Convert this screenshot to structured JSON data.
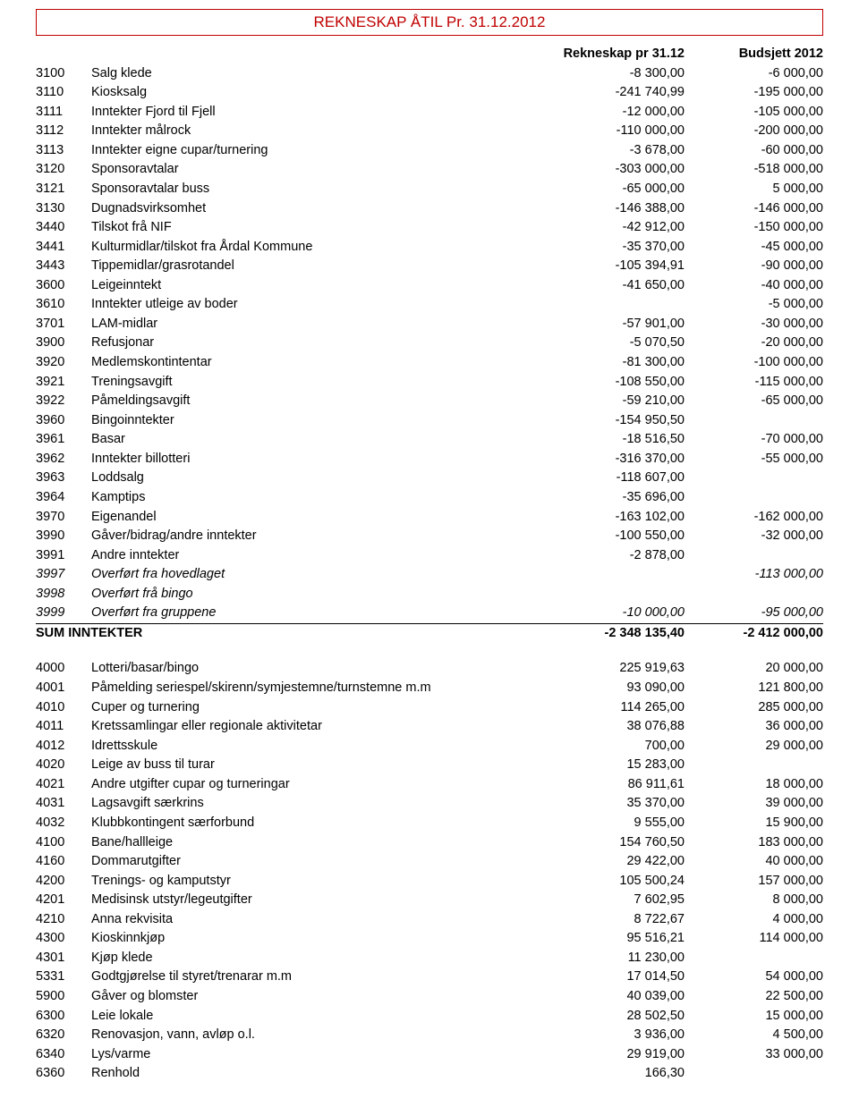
{
  "title": "REKNESKAP ÅTIL Pr. 31.12.2012",
  "header": {
    "rekneskap": "Rekneskap pr 31.12",
    "budsjett": "Budsjett 2012"
  },
  "inntekter": [
    {
      "code": "3100",
      "desc": "Salg klede",
      "v1": "-8 300,00",
      "v2": "-6 000,00"
    },
    {
      "code": "3110",
      "desc": "Kiosksalg",
      "v1": "-241 740,99",
      "v2": "-195 000,00"
    },
    {
      "code": "3111",
      "desc": "Inntekter Fjord til Fjell",
      "v1": "-12 000,00",
      "v2": "-105 000,00"
    },
    {
      "code": "3112",
      "desc": "Inntekter målrock",
      "v1": "-110 000,00",
      "v2": "-200 000,00"
    },
    {
      "code": "3113",
      "desc": "Inntekter eigne cupar/turnering",
      "v1": "-3 678,00",
      "v2": "-60 000,00"
    },
    {
      "code": "3120",
      "desc": "Sponsoravtalar",
      "v1": "-303 000,00",
      "v2": "-518 000,00"
    },
    {
      "code": "3121",
      "desc": "Sponsoravtalar buss",
      "v1": "-65 000,00",
      "v2": "5 000,00"
    },
    {
      "code": "3130",
      "desc": "Dugnadsvirksomhet",
      "v1": "-146 388,00",
      "v2": "-146 000,00"
    },
    {
      "code": "3440",
      "desc": "Tilskot frå NIF",
      "v1": "-42 912,00",
      "v2": "-150 000,00"
    },
    {
      "code": "3441",
      "desc": "Kulturmidlar/tilskot fra Årdal Kommune",
      "v1": "-35 370,00",
      "v2": "-45 000,00"
    },
    {
      "code": "3443",
      "desc": "Tippemidlar/grasrotandel",
      "v1": "-105 394,91",
      "v2": "-90 000,00"
    },
    {
      "code": "3600",
      "desc": "Leigeinntekt",
      "v1": "-41 650,00",
      "v2": "-40 000,00"
    },
    {
      "code": "3610",
      "desc": "Inntekter utleige av boder",
      "v1": "",
      "v2": "-5 000,00"
    },
    {
      "code": "3701",
      "desc": "LAM-midlar",
      "v1": "-57 901,00",
      "v2": "-30 000,00"
    },
    {
      "code": "3900",
      "desc": "Refusjonar",
      "v1": "-5 070,50",
      "v2": "-20 000,00"
    },
    {
      "code": "3920",
      "desc": "Medlemskontintentar",
      "v1": "-81 300,00",
      "v2": "-100 000,00"
    },
    {
      "code": "3921",
      "desc": "Treningsavgift",
      "v1": "-108 550,00",
      "v2": "-115 000,00"
    },
    {
      "code": "3922",
      "desc": "Påmeldingsavgift",
      "v1": "-59 210,00",
      "v2": "-65 000,00"
    },
    {
      "code": "3960",
      "desc": "Bingoinntekter",
      "v1": "-154 950,50",
      "v2": ""
    },
    {
      "code": "3961",
      "desc": "Basar",
      "v1": "-18 516,50",
      "v2": "-70 000,00"
    },
    {
      "code": "3962",
      "desc": "Inntekter billotteri",
      "v1": "-316 370,00",
      "v2": "-55 000,00"
    },
    {
      "code": "3963",
      "desc": "Loddsalg",
      "v1": "-118 607,00",
      "v2": ""
    },
    {
      "code": "3964",
      "desc": "Kamptips",
      "v1": "-35 696,00",
      "v2": ""
    },
    {
      "code": "3970",
      "desc": "Eigenandel",
      "v1": "-163 102,00",
      "v2": "-162 000,00"
    },
    {
      "code": "3990",
      "desc": "Gåver/bidrag/andre inntekter",
      "v1": "-100 550,00",
      "v2": "-32 000,00"
    },
    {
      "code": "3991",
      "desc": "Andre inntekter",
      "v1": "-2 878,00",
      "v2": ""
    },
    {
      "code": "3997",
      "desc": "Overført fra hovedlaget",
      "v1": "",
      "v2": "-113 000,00",
      "italic": true
    },
    {
      "code": "3998",
      "desc": "Overført frå bingo",
      "v1": "",
      "v2": "",
      "italic": true
    },
    {
      "code": "3999",
      "desc": "Overført fra gruppene",
      "v1": "-10 000,00",
      "v2": "-95 000,00",
      "italic": true
    }
  ],
  "sum_inntekter": {
    "label": "SUM INNTEKTER",
    "v1": "-2 348 135,40",
    "v2": "-2 412 000,00"
  },
  "utgifter": [
    {
      "code": "4000",
      "desc": "Lotteri/basar/bingo",
      "v1": "225 919,63",
      "v2": "20 000,00"
    },
    {
      "code": "4001",
      "desc": "Påmelding seriespel/skirenn/symjestemne/turnstemne m.m",
      "v1": "93 090,00",
      "v2": "121 800,00"
    },
    {
      "code": "4010",
      "desc": "Cuper og turnering",
      "v1": "114 265,00",
      "v2": "285 000,00"
    },
    {
      "code": "4011",
      "desc": "Kretssamlingar eller regionale aktivitetar",
      "v1": "38 076,88",
      "v2": "36 000,00"
    },
    {
      "code": "4012",
      "desc": "Idrettsskule",
      "v1": "700,00",
      "v2": "29 000,00"
    },
    {
      "code": "4020",
      "desc": "Leige av buss til turar",
      "v1": "15 283,00",
      "v2": ""
    },
    {
      "code": "4021",
      "desc": "Andre utgifter cupar og turneringar",
      "v1": "86 911,61",
      "v2": "18 000,00"
    },
    {
      "code": "4031",
      "desc": "Lagsavgift særkrins",
      "v1": "35 370,00",
      "v2": "39 000,00"
    },
    {
      "code": "4032",
      "desc": "Klubbkontingent særforbund",
      "v1": "9 555,00",
      "v2": "15 900,00"
    },
    {
      "code": "4100",
      "desc": "Bane/hallleige",
      "v1": "154 760,50",
      "v2": "183 000,00"
    },
    {
      "code": "4160",
      "desc": "Dommarutgifter",
      "v1": "29 422,00",
      "v2": "40 000,00"
    },
    {
      "code": "4200",
      "desc": "Trenings- og kamputstyr",
      "v1": "105 500,24",
      "v2": "157 000,00"
    },
    {
      "code": "4201",
      "desc": "Medisinsk utstyr/legeutgifter",
      "v1": "7 602,95",
      "v2": "8 000,00"
    },
    {
      "code": "4210",
      "desc": "Anna rekvisita",
      "v1": "8 722,67",
      "v2": "4 000,00"
    },
    {
      "code": "4300",
      "desc": "Kioskinnkjøp",
      "v1": "95 516,21",
      "v2": "114 000,00"
    },
    {
      "code": "4301",
      "desc": "Kjøp klede",
      "v1": "11 230,00",
      "v2": ""
    },
    {
      "code": "5331",
      "desc": "Godtgjørelse til styret/trenarar m.m",
      "v1": "17 014,50",
      "v2": "54 000,00"
    },
    {
      "code": "5900",
      "desc": "Gåver og blomster",
      "v1": "40 039,00",
      "v2": "22 500,00"
    },
    {
      "code": "6300",
      "desc": "Leie lokale",
      "v1": "28 502,50",
      "v2": "15 000,00"
    },
    {
      "code": "6320",
      "desc": "Renovasjon, vann, avløp o.l.",
      "v1": "3 936,00",
      "v2": "4 500,00"
    },
    {
      "code": "6340",
      "desc": "Lys/varme",
      "v1": "29 919,00",
      "v2": "33 000,00"
    },
    {
      "code": "6360",
      "desc": "Renhold",
      "v1": "166,30",
      "v2": ""
    }
  ],
  "style": {
    "title_color": "#c00000",
    "border_color": "#c00000",
    "bg": "#ffffff",
    "font_size_body": 14.5,
    "font_size_title": 17,
    "col_code_width": 62,
    "col_num_width": 155
  }
}
